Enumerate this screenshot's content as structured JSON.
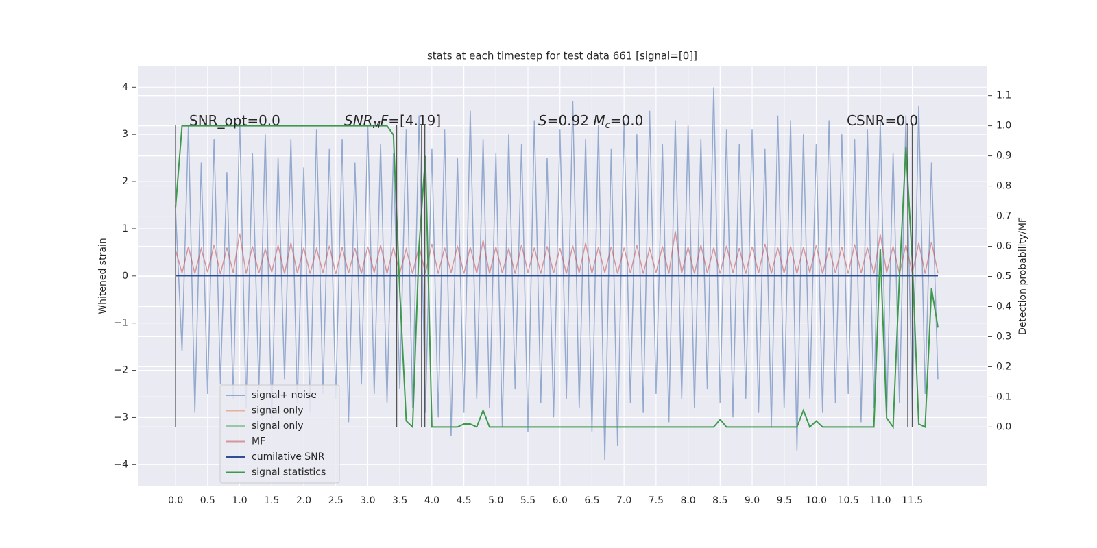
{
  "chart_data": {
    "type": "line",
    "title": "stats at each timestep for test data 661 [signal=[0]]",
    "ylabel": "Whitened strain",
    "y2label": "Detection probability/MF",
    "annotations": [
      [
        "SNR_opt=0.0"
      ],
      [
        "SNR",
        "M",
        "F",
        "=[4.19]"
      ],
      [
        "S",
        "=0.92   ",
        "M",
        "c",
        "=0.0"
      ],
      [
        "CSNR=0.0"
      ]
    ],
    "xlim": [
      -0.59,
      12.66
    ],
    "ylim": [
      -4.46,
      4.44
    ],
    "y2lim": [
      -0.197,
      1.197
    ],
    "xticks": [
      {
        "value": 0,
        "label": "0.0"
      },
      {
        "value": 0.5,
        "label": "0.5"
      },
      {
        "value": 1,
        "label": "1.0"
      },
      {
        "value": 1.5,
        "label": "1.5"
      },
      {
        "value": 2,
        "label": "2.0"
      },
      {
        "value": 2.5,
        "label": "2.5"
      },
      {
        "value": 3,
        "label": "3.0"
      },
      {
        "value": 3.5,
        "label": "3.5"
      },
      {
        "value": 4,
        "label": "4.0"
      },
      {
        "value": 4.5,
        "label": "4.5"
      },
      {
        "value": 5,
        "label": "5.0"
      },
      {
        "value": 5.5,
        "label": "5.5"
      },
      {
        "value": 6,
        "label": "6.0"
      },
      {
        "value": 6.5,
        "label": "6.5"
      },
      {
        "value": 7,
        "label": "7.0"
      },
      {
        "value": 7.5,
        "label": "7.5"
      },
      {
        "value": 8,
        "label": "8.0"
      },
      {
        "value": 8.5,
        "label": "8.5"
      },
      {
        "value": 9,
        "label": "9.0"
      },
      {
        "value": 9.5,
        "label": "9.5"
      },
      {
        "value": 10,
        "label": "10.0"
      },
      {
        "value": 10.5,
        "label": "10.5"
      },
      {
        "value": 11,
        "label": "11.0"
      },
      {
        "value": 11.5,
        "label": "11.5"
      }
    ],
    "yticks": [
      {
        "value": -4,
        "label": "−4"
      },
      {
        "value": -3,
        "label": "−3"
      },
      {
        "value": -2,
        "label": "−2"
      },
      {
        "value": -1,
        "label": "−1"
      },
      0,
      1,
      2,
      3,
      4
    ],
    "y2ticks": [
      {
        "value": 0,
        "label": "0.0"
      },
      {
        "value": 0.1,
        "label": "0.1"
      },
      {
        "value": 0.2,
        "label": "0.2"
      },
      {
        "value": 0.3,
        "label": "0.3"
      },
      {
        "value": 0.4,
        "label": "0.4"
      },
      {
        "value": 0.5,
        "label": "0.5"
      },
      {
        "value": 0.6,
        "label": "0.6"
      },
      {
        "value": 0.7,
        "label": "0.7"
      },
      {
        "value": 0.8,
        "label": "0.8"
      },
      {
        "value": 0.9,
        "label": "0.9"
      },
      {
        "value": 1,
        "label": "1.0"
      },
      {
        "value": 1.1,
        "label": "1.1"
      }
    ],
    "grid": true,
    "legend_loc": "lower left",
    "vlines": {
      "x": [
        0,
        3.45,
        3.84,
        3.89,
        11.43,
        11.5
      ],
      "ylim": [
        -3.2,
        3.2
      ],
      "color": "#555555"
    },
    "x": [
      0,
      0.1,
      0.2,
      0.3,
      0.4,
      0.5,
      0.6,
      0.7,
      0.8,
      0.9,
      1,
      1.1,
      1.2,
      1.3,
      1.4,
      1.5,
      1.6,
      1.7,
      1.8,
      1.9,
      2,
      2.1,
      2.2,
      2.3,
      2.4,
      2.5,
      2.6,
      2.7,
      2.8,
      2.9,
      3,
      3.1,
      3.2,
      3.3,
      3.4,
      3.5,
      3.6,
      3.7,
      3.8,
      3.9,
      4,
      4.1,
      4.2,
      4.3,
      4.4,
      4.5,
      4.6,
      4.7,
      4.8,
      4.9,
      5,
      5.1,
      5.2,
      5.3,
      5.4,
      5.5,
      5.6,
      5.7,
      5.8,
      5.9,
      6,
      6.1,
      6.2,
      6.3,
      6.4,
      6.5,
      6.6,
      6.7,
      6.8,
      6.9,
      7,
      7.1,
      7.2,
      7.3,
      7.4,
      7.5,
      7.6,
      7.7,
      7.8,
      7.9,
      8,
      8.1,
      8.2,
      8.3,
      8.4,
      8.5,
      8.6,
      8.7,
      8.8,
      8.9,
      9,
      9.1,
      9.2,
      9.3,
      9.4,
      9.5,
      9.6,
      9.7,
      9.8,
      9.9,
      10,
      10.1,
      10.2,
      10.3,
      10.4,
      10.5,
      10.6,
      10.7,
      10.8,
      10.9,
      11,
      11.1,
      11.2,
      11.3,
      11.4,
      11.5,
      11.6,
      11.7,
      11.8,
      11.9
    ],
    "series": [
      {
        "name": "signal+ noise",
        "color": "#4c72b0",
        "alpha": 0.55,
        "values": [
          1.4,
          -1.6,
          3.2,
          -2.9,
          2.4,
          -2.5,
          2.9,
          -2.3,
          2.2,
          -2.6,
          3.3,
          -2.8,
          2.6,
          -2.4,
          3.0,
          -3.1,
          2.5,
          -2.2,
          2.9,
          -2.7,
          2.3,
          -2.9,
          3.1,
          -2.5,
          2.7,
          -2.6,
          2.9,
          -3.1,
          2.4,
          -2.3,
          3.2,
          -2.5,
          2.8,
          -2.7,
          2.6,
          -2.4,
          3.1,
          -2.8,
          3.4,
          -2.9,
          2.7,
          -3.0,
          3.1,
          -3.4,
          2.5,
          -2.9,
          3.5,
          -2.6,
          2.9,
          -2.8,
          2.6,
          -3.2,
          3.0,
          -2.4,
          2.8,
          -3.3,
          3.3,
          -2.7,
          2.5,
          -3.0,
          3.1,
          -2.6,
          3.7,
          -2.8,
          2.9,
          -3.3,
          3.2,
          -3.9,
          2.7,
          -3.6,
          3.3,
          -2.7,
          3.0,
          -2.9,
          3.5,
          -2.5,
          2.8,
          -3.1,
          3.3,
          -2.6,
          3.2,
          -2.8,
          2.9,
          -2.4,
          4.0,
          -2.7,
          3.1,
          -3.0,
          2.8,
          -2.6,
          3.1,
          -2.9,
          2.7,
          -3.2,
          3.4,
          -2.8,
          3.3,
          -3.7,
          3.0,
          -2.6,
          2.8,
          -2.9,
          3.3,
          -2.7,
          3.0,
          -2.5,
          2.9,
          -3.1,
          3.1,
          -2.8,
          3.3,
          -3.0,
          2.6,
          -2.7,
          3.4,
          -2.9,
          3.6,
          -2.5,
          2.4,
          -2.2
        ]
      },
      {
        "name": "signal only",
        "color": "#dd8452",
        "alpha": 0.55,
        "x": [
          0,
          11.9
        ],
        "values": [
          0,
          0
        ]
      },
      {
        "name": "signal only",
        "color": "#55a868",
        "alpha": 0.55,
        "x": [
          0,
          11.9
        ],
        "values": [
          0,
          0
        ]
      },
      {
        "name": "MF",
        "color": "#c44e52",
        "alpha": 0.55,
        "values": [
          0.55,
          0.06,
          0.62,
          0.05,
          0.58,
          0.08,
          0.66,
          0.04,
          0.6,
          0.07,
          0.9,
          0.05,
          0.63,
          0.06,
          0.57,
          0.08,
          0.65,
          0.05,
          0.7,
          0.06,
          0.6,
          0.05,
          0.58,
          0.07,
          0.64,
          0.04,
          0.61,
          0.06,
          0.59,
          0.05,
          0.62,
          0.07,
          0.66,
          0.05,
          0.6,
          0.06,
          0.57,
          0.05,
          0.63,
          0.06,
          0.68,
          0.05,
          0.6,
          0.07,
          0.64,
          0.05,
          0.61,
          0.06,
          0.75,
          0.05,
          0.62,
          0.06,
          0.58,
          0.05,
          0.66,
          0.07,
          0.6,
          0.05,
          0.63,
          0.06,
          0.59,
          0.05,
          0.64,
          0.06,
          0.7,
          0.05,
          0.61,
          0.07,
          0.62,
          0.05,
          0.6,
          0.06,
          0.65,
          0.05,
          0.58,
          0.07,
          0.63,
          0.05,
          0.95,
          0.06,
          0.61,
          0.05,
          0.66,
          0.06,
          0.6,
          0.05,
          0.64,
          0.07,
          0.59,
          0.05,
          0.62,
          0.06,
          0.68,
          0.05,
          0.6,
          0.06,
          0.63,
          0.05,
          0.61,
          0.07,
          0.65,
          0.05,
          0.6,
          0.06,
          0.62,
          0.05,
          0.67,
          0.06,
          0.6,
          0.05,
          0.88,
          0.07,
          0.63,
          0.05,
          0.66,
          0.06,
          0.7,
          0.05,
          0.72,
          0.06
        ]
      },
      {
        "name": "cumilative SNR",
        "color": "#2c4f96",
        "alpha": 1,
        "x": [
          0,
          11.9
        ],
        "values": [
          0,
          0
        ]
      },
      {
        "name": "signal statistics",
        "color": "#3d9a4b",
        "alpha": 1,
        "axis": "y2",
        "values": [
          0.73,
          1,
          1,
          1,
          1,
          1,
          1,
          1,
          1,
          1,
          1,
          1,
          1,
          1,
          1,
          1,
          1,
          1,
          1,
          1,
          1,
          1,
          1,
          1,
          1,
          1,
          1,
          1,
          1,
          1,
          1,
          1,
          1,
          1,
          0.97,
          0.45,
          0.02,
          0,
          0.6,
          0.9,
          0,
          0,
          0,
          0,
          0,
          0.01,
          0.01,
          0,
          0.055,
          0,
          0,
          0,
          0,
          0,
          0,
          0,
          0,
          0,
          0,
          0,
          0,
          0,
          0,
          0,
          0,
          0,
          0,
          0,
          0,
          0,
          0,
          0,
          0,
          0,
          0,
          0,
          0,
          0,
          0,
          0,
          0,
          0,
          0,
          0,
          0,
          0.025,
          0,
          0,
          0,
          0,
          0,
          0,
          0,
          0,
          0,
          0,
          0,
          0,
          0.055,
          0,
          0.02,
          0,
          0,
          0,
          0,
          0,
          0,
          0,
          0,
          0,
          0.59,
          0.03,
          0,
          0.5,
          0.93,
          0.55,
          0.01,
          0,
          0.46,
          0.33
        ]
      }
    ]
  }
}
